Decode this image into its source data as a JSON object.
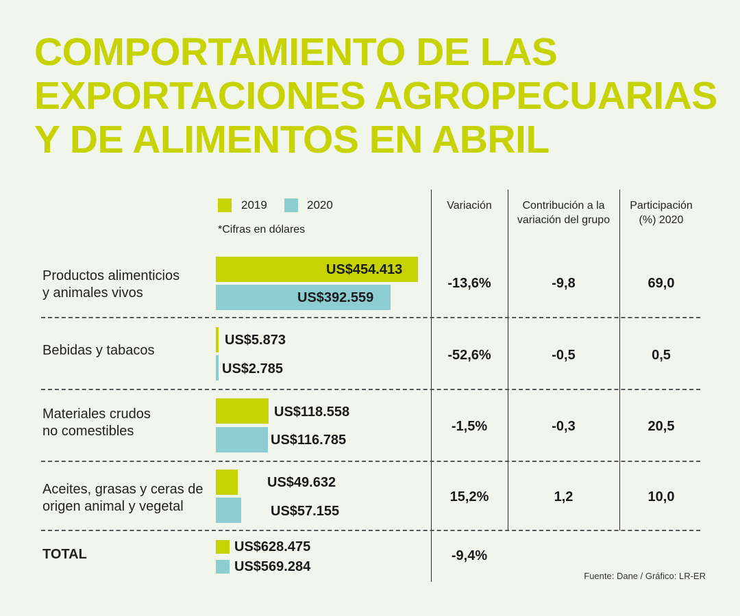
{
  "title_lines": [
    "COMPORTAMIENTO DE LAS",
    "EXPORTACIONES AGROPECUARIAS",
    "Y DE ALIMENTOS EN ABRIL"
  ],
  "legend": {
    "y2019": "2019",
    "y2020": "2020"
  },
  "note": "*Cifras en dólares",
  "columns": {
    "variacion": "Variación",
    "contribucion": [
      "Contribución a la",
      "variación del grupo"
    ],
    "participacion": [
      "Participación",
      "(%) 2020"
    ]
  },
  "colors": {
    "y2019": "#c6d300",
    "y2020": "#8ccdd2",
    "title": "#c6d300"
  },
  "rows": [
    {
      "category": [
        "Productos alimenticios",
        "y animales vivos"
      ],
      "label2019": "US$454.413",
      "label2020": "US$392.559",
      "variacion": "-13,6%",
      "contribucion": "-9,8",
      "participacion": "69,0"
    },
    {
      "category": [
        "Bebidas y tabacos"
      ],
      "label2019": "US$5.873",
      "label2020": "US$2.785",
      "variacion": "-52,6%",
      "contribucion": "-0,5",
      "participacion": "0,5"
    },
    {
      "category": [
        "Materiales crudos",
        "no comestibles"
      ],
      "label2019": "US$118.558",
      "label2020": "US$116.785",
      "variacion": "-1,5%",
      "contribucion": "-0,3",
      "participacion": "20,5"
    },
    {
      "category": [
        "Aceites, grasas y ceras de",
        "origen animal y vegetal"
      ],
      "label2019": "US$49.632",
      "label2020": "US$57.155",
      "variacion": "15,2%",
      "contribucion": "1,2",
      "participacion": "10,0"
    }
  ],
  "total": {
    "category": "TOTAL",
    "label2019": "US$628.475",
    "label2020": "US$569.284",
    "variacion": "-9,4%"
  },
  "source": "Fuente: Dane / Gráfico: LR-ER",
  "chart_data": {
    "type": "bar",
    "title": "COMPORTAMIENTO DE LAS EXPORTACIONES AGROPECUARIAS Y DE ALIMENTOS EN ABRIL",
    "categories": [
      "Productos alimenticios y animales vivos",
      "Bebidas y tabacos",
      "Materiales crudos no comestibles",
      "Aceites, grasas y ceras de origen animal y vegetal"
    ],
    "series": [
      {
        "name": "2019",
        "values": [
          454413,
          5873,
          118558,
          49632
        ]
      },
      {
        "name": "2020",
        "values": [
          392559,
          2785,
          116785,
          57155
        ]
      }
    ],
    "totals": {
      "2019": 628475,
      "2020": 569284
    },
    "orientation": "horizontal",
    "unit": "US$"
  }
}
